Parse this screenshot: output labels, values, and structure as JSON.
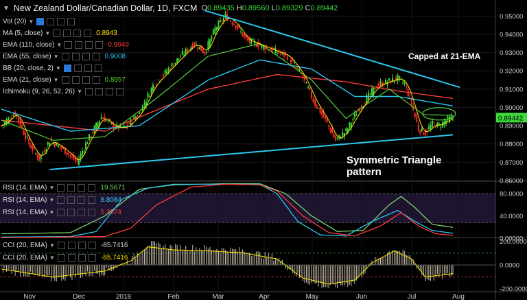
{
  "header": {
    "title": "New Zealand Dollar/Canadian Dollar, 1D, FXCM",
    "ohlc": [
      {
        "k": "O",
        "v": "0.89435"
      },
      {
        "k": "H",
        "v": "0.89560"
      },
      {
        "k": "L",
        "v": "0.89329"
      },
      {
        "k": "C",
        "v": "0.89442"
      }
    ]
  },
  "indicators": [
    {
      "label": "Vol (20)",
      "value": "",
      "color": "#dddddd"
    },
    {
      "label": "MA (5, close)",
      "value": "0.8943",
      "color": "#ffe800"
    },
    {
      "label": "EMA (110, close)",
      "value": "0.9049",
      "color": "#ff3b3b"
    },
    {
      "label": "EMA (55, close)",
      "value": "0.9008",
      "color": "#2cc7ee"
    },
    {
      "label": "BB (20, close, 2)",
      "value": "",
      "color": "#dddddd"
    },
    {
      "label": "EMA (21, close)",
      "value": "0.8957",
      "color": "#56d23a"
    },
    {
      "label": "Ichimoku (9, 26, 52, 26)",
      "value": "",
      "color": "#dddddd"
    }
  ],
  "rsi_legend": [
    {
      "label": "RSI (14, EMA)",
      "value": "19.5671",
      "color": "#7fd36b"
    },
    {
      "label": "RSI (14, EMA)",
      "value": "8.8084",
      "color": "#2cc7ee"
    },
    {
      "label": "RSI (14, EMA)",
      "value": "5.2074",
      "color": "#ff3b3b"
    }
  ],
  "cci_legend": [
    {
      "label": "CCI (20, EMA)",
      "value": "-85.7416",
      "color": "#dddddd"
    },
    {
      "label": "CCI (20, EMA)",
      "value": "-85.7416",
      "color": "#ffe800"
    }
  ],
  "annotations": {
    "capped": "Capped at 21-EMA",
    "pattern": "Symmetric Triangle pattern"
  },
  "colors": {
    "up": "#3ddc3d",
    "down": "#ff2a2a",
    "trendline": "#2cc7ee",
    "ema110": "#ff3b3b",
    "ema55": "#2cc7ee",
    "ema21": "#56d23a",
    "ma5": "#ffe800",
    "current_price_bg": "#3ddc3d"
  },
  "chart_data": [
    {
      "type": "line",
      "name": "price",
      "x_ticks": [
        "Nov",
        "Dec",
        "2018",
        "Feb",
        "Mar",
        "Apr",
        "May",
        "Jun",
        "Jul",
        "Aug"
      ],
      "y_ticks": [
        "0.95000",
        "0.94000",
        "0.93000",
        "0.92000",
        "0.91000",
        "0.90000",
        "0.89000",
        "0.88000",
        "0.87000",
        "0.86000"
      ],
      "ylim": [
        0.86,
        0.955
      ],
      "current_price": "0.89442",
      "close_anchors": [
        [
          0,
          0.89
        ],
        [
          8,
          0.897
        ],
        [
          16,
          0.88
        ],
        [
          22,
          0.872
        ],
        [
          28,
          0.882
        ],
        [
          36,
          0.877
        ],
        [
          44,
          0.87
        ],
        [
          50,
          0.882
        ],
        [
          58,
          0.895
        ],
        [
          66,
          0.889
        ],
        [
          72,
          0.889
        ],
        [
          80,
          0.897
        ],
        [
          88,
          0.912
        ],
        [
          96,
          0.92
        ],
        [
          104,
          0.928
        ],
        [
          112,
          0.935
        ],
        [
          118,
          0.93
        ],
        [
          124,
          0.943
        ],
        [
          130,
          0.95
        ],
        [
          136,
          0.945
        ],
        [
          142,
          0.937
        ],
        [
          150,
          0.934
        ],
        [
          158,
          0.931
        ],
        [
          166,
          0.928
        ],
        [
          174,
          0.918
        ],
        [
          182,
          0.902
        ],
        [
          188,
          0.893
        ],
        [
          194,
          0.882
        ],
        [
          200,
          0.887
        ],
        [
          206,
          0.897
        ],
        [
          212,
          0.905
        ],
        [
          218,
          0.912
        ],
        [
          224,
          0.914
        ],
        [
          230,
          0.916
        ],
        [
          234,
          0.913
        ],
        [
          238,
          0.902
        ],
        [
          242,
          0.888
        ],
        [
          246,
          0.886
        ],
        [
          250,
          0.891
        ],
        [
          254,
          0.89
        ],
        [
          258,
          0.893
        ],
        [
          262,
          0.8944
        ]
      ],
      "ema110_anchors": [
        [
          0,
          0.893
        ],
        [
          60,
          0.887
        ],
        [
          120,
          0.91
        ],
        [
          160,
          0.918
        ],
        [
          200,
          0.914
        ],
        [
          230,
          0.909
        ],
        [
          262,
          0.9049
        ]
      ],
      "ema55_anchors": [
        [
          0,
          0.899
        ],
        [
          40,
          0.887
        ],
        [
          80,
          0.89
        ],
        [
          120,
          0.915
        ],
        [
          150,
          0.926
        ],
        [
          180,
          0.921
        ],
        [
          205,
          0.906
        ],
        [
          230,
          0.906
        ],
        [
          262,
          0.9008
        ]
      ],
      "ema21_anchors": [
        [
          0,
          0.893
        ],
        [
          30,
          0.882
        ],
        [
          60,
          0.884
        ],
        [
          90,
          0.905
        ],
        [
          120,
          0.928
        ],
        [
          150,
          0.935
        ],
        [
          180,
          0.915
        ],
        [
          200,
          0.894
        ],
        [
          225,
          0.91
        ],
        [
          245,
          0.896
        ],
        [
          262,
          0.8957
        ]
      ],
      "trendlines": [
        {
          "name": "upper",
          "from": [
            118,
            0.953
          ],
          "to": [
            266,
            0.911
          ]
        },
        {
          "name": "lower",
          "from": [
            28,
            0.866
          ],
          "to": [
            262,
            0.885
          ]
        }
      ]
    },
    {
      "type": "line",
      "name": "rsi",
      "y_ticks": [
        "80.0000",
        "40.0000",
        "0.00000"
      ],
      "ylim": [
        0,
        100
      ],
      "series": [
        {
          "values_anchors": [
            [
              0,
              8
            ],
            [
              40,
              10
            ],
            [
              60,
              40
            ],
            [
              80,
              88
            ],
            [
              100,
              96
            ],
            [
              130,
              98
            ],
            [
              150,
              98
            ],
            [
              165,
              80
            ],
            [
              180,
              40
            ],
            [
              195,
              12
            ],
            [
              210,
              14
            ],
            [
              225,
              60
            ],
            [
              232,
              75
            ],
            [
              240,
              55
            ],
            [
              250,
              25
            ],
            [
              262,
              19.5671
            ]
          ]
        },
        {
          "values_anchors": [
            [
              0,
              2
            ],
            [
              40,
              3
            ],
            [
              55,
              12
            ],
            [
              70,
              70
            ],
            [
              85,
              90
            ],
            [
              100,
              97
            ],
            [
              150,
              97
            ],
            [
              160,
              80
            ],
            [
              172,
              30
            ],
            [
              185,
              6
            ],
            [
              200,
              4
            ],
            [
              215,
              30
            ],
            [
              230,
              50
            ],
            [
              240,
              30
            ],
            [
              250,
              14
            ],
            [
              262,
              8.8084
            ]
          ]
        },
        {
          "values_anchors": [
            [
              0,
              1
            ],
            [
              60,
              3
            ],
            [
              75,
              18
            ],
            [
              90,
              60
            ],
            [
              110,
              92
            ],
            [
              130,
              97
            ],
            [
              150,
              96
            ],
            [
              160,
              85
            ],
            [
              175,
              40
            ],
            [
              190,
              10
            ],
            [
              205,
              4
            ],
            [
              220,
              22
            ],
            [
              232,
              46
            ],
            [
              242,
              22
            ],
            [
              252,
              8
            ],
            [
              262,
              5.2074
            ]
          ]
        }
      ]
    },
    {
      "type": "bar",
      "name": "cci",
      "y_ticks": [
        "200.0000",
        "0.0000",
        "-200.0000"
      ],
      "ylim": [
        -220,
        220
      ],
      "last_value": "-85.7416"
    }
  ]
}
